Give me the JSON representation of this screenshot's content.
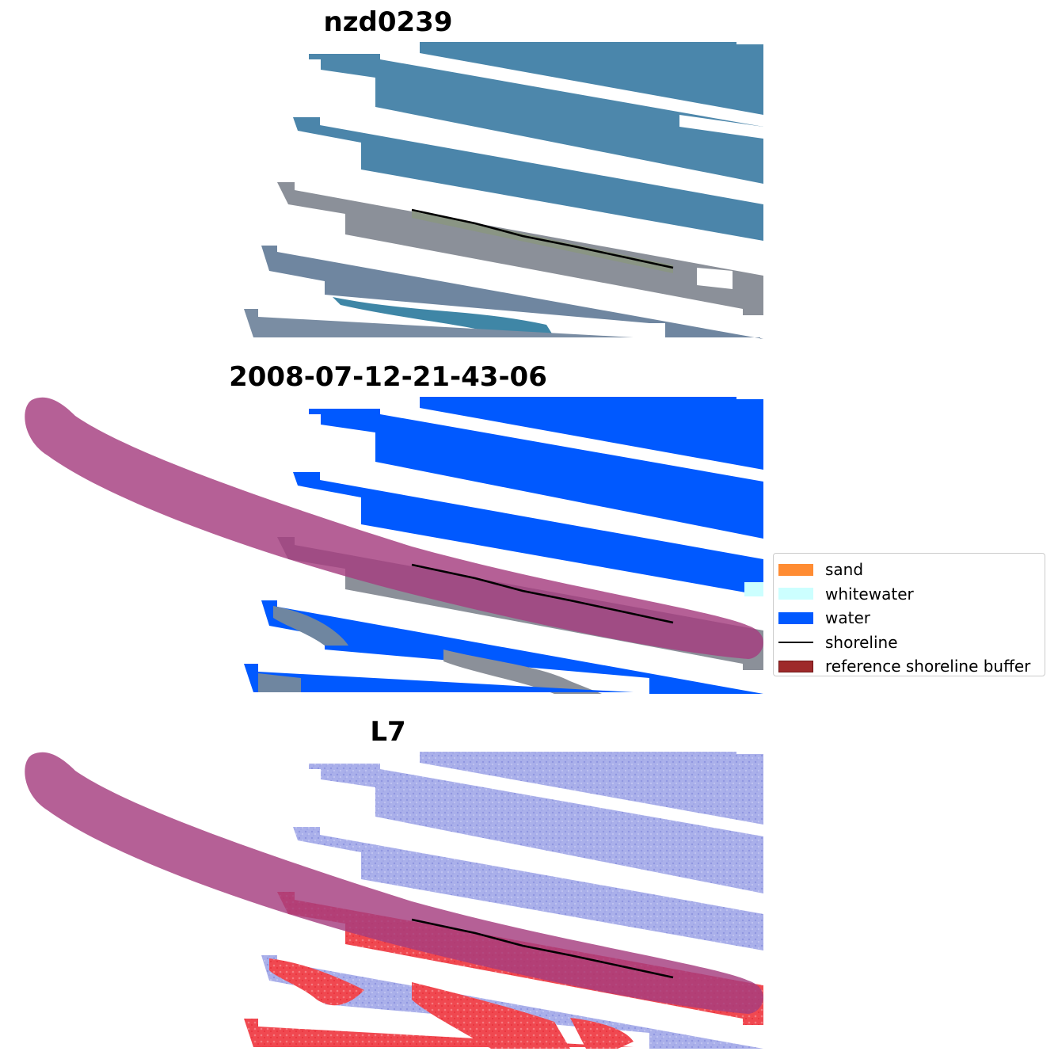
{
  "panels": [
    {
      "title": "nzd0239"
    },
    {
      "title": "2008-07-12-21-43-06"
    },
    {
      "title": "L7"
    }
  ],
  "legend": {
    "items": [
      {
        "label": "sand",
        "kind": "patch",
        "color": "#ff8c33"
      },
      {
        "label": "whitewater",
        "kind": "patch",
        "color": "#ccffff"
      },
      {
        "label": "water",
        "kind": "patch",
        "color": "#0059ff"
      },
      {
        "label": "shoreline",
        "kind": "line",
        "color": "#000000"
      },
      {
        "label": "reference shoreline buffer",
        "kind": "patch",
        "color": "#9e2a2b",
        "edge": "#6e1515"
      }
    ]
  },
  "colors": {
    "rgb_water": "#4d86aa",
    "rgb_land": "#8a8f98",
    "class_water": "#0059ff",
    "buffer_overlay": "#a53d7f",
    "index_water": "#aab0ea",
    "index_land": "#f04850"
  }
}
